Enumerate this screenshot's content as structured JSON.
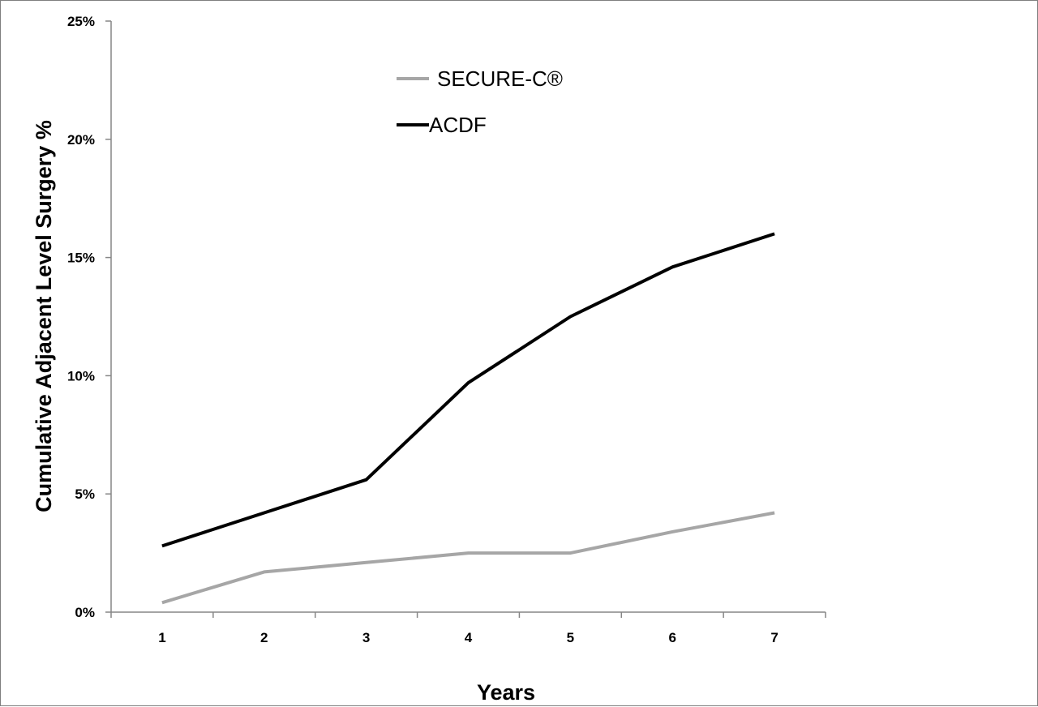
{
  "chart_data": {
    "type": "line",
    "title": "",
    "xlabel": "Years",
    "ylabel": "Cumulative Adjacent Level Surgery %",
    "x": [
      1,
      2,
      3,
      4,
      5,
      6,
      7
    ],
    "categories": [
      "1",
      "2",
      "3",
      "4",
      "5",
      "6",
      "7"
    ],
    "ylim": [
      0,
      25
    ],
    "yticks": [
      0,
      5,
      10,
      15,
      20,
      25
    ],
    "ytick_labels": [
      "0%",
      "5%",
      "10%",
      "15%",
      "20%",
      "25%"
    ],
    "grid": false,
    "legend_position": "top-center",
    "series": [
      {
        "name": "SECURE-C®",
        "color": "#a6a6a6",
        "values": [
          0.4,
          1.7,
          2.1,
          2.5,
          2.5,
          3.4,
          4.2
        ]
      },
      {
        "name": "ACDF",
        "color": "#000000",
        "values": [
          2.8,
          4.2,
          5.6,
          9.7,
          12.5,
          14.6,
          16.0
        ]
      }
    ]
  }
}
